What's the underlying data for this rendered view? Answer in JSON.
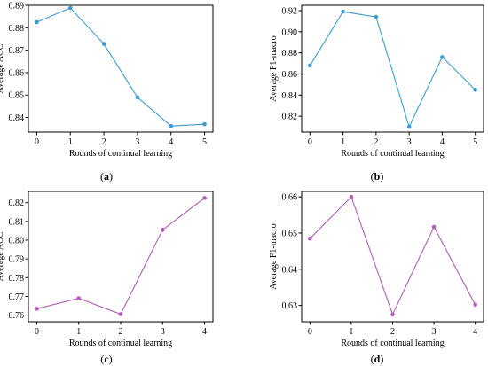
{
  "chart_data": [
    {
      "type": "line",
      "panel_label": "a",
      "xlabel": "Rounds of continual learning",
      "ylabel": "Average ACC",
      "x": [
        0,
        1,
        2,
        3,
        4,
        5
      ],
      "y": [
        0.8825,
        0.8888,
        0.8728,
        0.849,
        0.8362,
        0.837
      ],
      "xlim": [
        -0.25,
        5.25
      ],
      "ylim": [
        0.8335,
        0.89
      ],
      "xticks": [
        0,
        1,
        2,
        3,
        4,
        5
      ],
      "xtick_labels": [
        "0",
        "1",
        "2",
        "3",
        "4",
        "5"
      ],
      "yticks": [
        0.84,
        0.85,
        0.86,
        0.87,
        0.88,
        0.89
      ],
      "ytick_labels": [
        "0.84",
        "0.85",
        "0.86",
        "0.87",
        "0.88",
        "0.89"
      ],
      "color": "#3e9bd2",
      "grid": false
    },
    {
      "type": "line",
      "panel_label": "b",
      "xlabel": "Rounds of continual learning",
      "ylabel": "Average F1-macro",
      "x": [
        0,
        1,
        2,
        3,
        4,
        5
      ],
      "y": [
        0.868,
        0.919,
        0.914,
        0.81,
        0.876,
        0.845
      ],
      "xlim": [
        -0.25,
        5.25
      ],
      "ylim": [
        0.805,
        0.925
      ],
      "xticks": [
        0,
        1,
        2,
        3,
        4,
        5
      ],
      "xtick_labels": [
        "0",
        "1",
        "2",
        "3",
        "4",
        "5"
      ],
      "yticks": [
        0.82,
        0.84,
        0.86,
        0.88,
        0.9,
        0.92
      ],
      "ytick_labels": [
        "0.82",
        "0.84",
        "0.86",
        "0.88",
        "0.90",
        "0.92"
      ],
      "color": "#3e9bd2",
      "grid": false
    },
    {
      "type": "line",
      "panel_label": "c",
      "xlabel": "Rounds of continual learning",
      "ylabel": "Average ACC",
      "x": [
        0,
        1,
        2,
        3,
        4
      ],
      "y": [
        0.7634,
        0.769,
        0.7605,
        0.8055,
        0.8225
      ],
      "xlim": [
        -0.2,
        4.2
      ],
      "ylim": [
        0.7565,
        0.826
      ],
      "xticks": [
        0,
        1,
        2,
        3,
        4
      ],
      "xtick_labels": [
        "0",
        "1",
        "2",
        "3",
        "4"
      ],
      "yticks": [
        0.76,
        0.77,
        0.78,
        0.79,
        0.8,
        0.81,
        0.82
      ],
      "ytick_labels": [
        "0.76",
        "0.77",
        "0.78",
        "0.79",
        "0.80",
        "0.81",
        "0.82"
      ],
      "color": "#b05fb5",
      "grid": false
    },
    {
      "type": "line",
      "panel_label": "d",
      "xlabel": "Rounds of continual learning",
      "ylabel": "Average F1-macro",
      "x": [
        0,
        1,
        2,
        3,
        4
      ],
      "y": [
        0.6485,
        0.66,
        0.6275,
        0.6517,
        0.6302
      ],
      "xlim": [
        -0.2,
        4.2
      ],
      "ylim": [
        0.6255,
        0.6615
      ],
      "xticks": [
        0,
        1,
        2,
        3,
        4
      ],
      "xtick_labels": [
        "0",
        "1",
        "2",
        "3",
        "4"
      ],
      "yticks": [
        0.63,
        0.64,
        0.65,
        0.66
      ],
      "ytick_labels": [
        "0.63",
        "0.64",
        "0.65",
        "0.66"
      ],
      "color": "#b05fb5",
      "grid": false
    }
  ]
}
